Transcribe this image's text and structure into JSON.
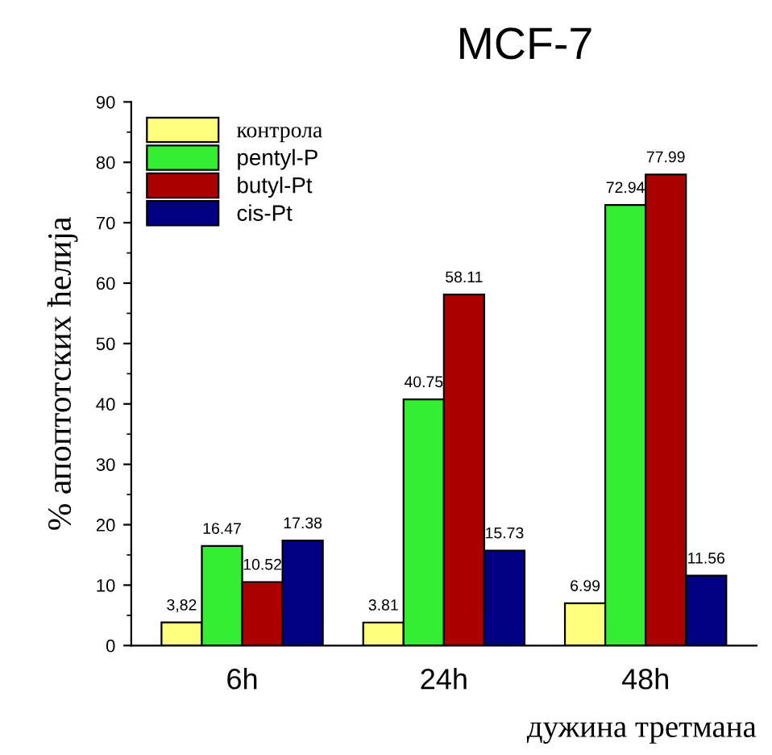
{
  "chart_data": {
    "type": "bar",
    "title": "MCF-7",
    "xlabel": "дужина третмана",
    "ylabel": "% апоптотских ћелија",
    "categories": [
      "6h",
      "24h",
      "48h"
    ],
    "series": [
      {
        "name": "контрола",
        "color": "#ffff80",
        "values": [
          3.82,
          3.81,
          6.99
        ],
        "value_labels": [
          "3,82",
          "3.81",
          "6.99"
        ]
      },
      {
        "name": "pentyl-P",
        "color": "#33ee33",
        "values": [
          16.47,
          40.75,
          72.94
        ],
        "value_labels": [
          "16.47",
          "40.75",
          "72.94"
        ]
      },
      {
        "name": "butyl-Pt",
        "color": "#aa0000",
        "values": [
          10.52,
          58.11,
          77.99
        ],
        "value_labels": [
          "10.52",
          "58.11",
          "77.99"
        ]
      },
      {
        "name": "cis-Pt",
        "color": "#000080",
        "values": [
          17.38,
          15.73,
          11.56
        ],
        "value_labels": [
          "17.38",
          "15.73",
          "11.56"
        ]
      }
    ],
    "ylim": [
      0,
      90
    ],
    "yticks": [
      0,
      10,
      20,
      30,
      40,
      50,
      60,
      70,
      80,
      90
    ],
    "grid": false,
    "legend": "top left"
  }
}
